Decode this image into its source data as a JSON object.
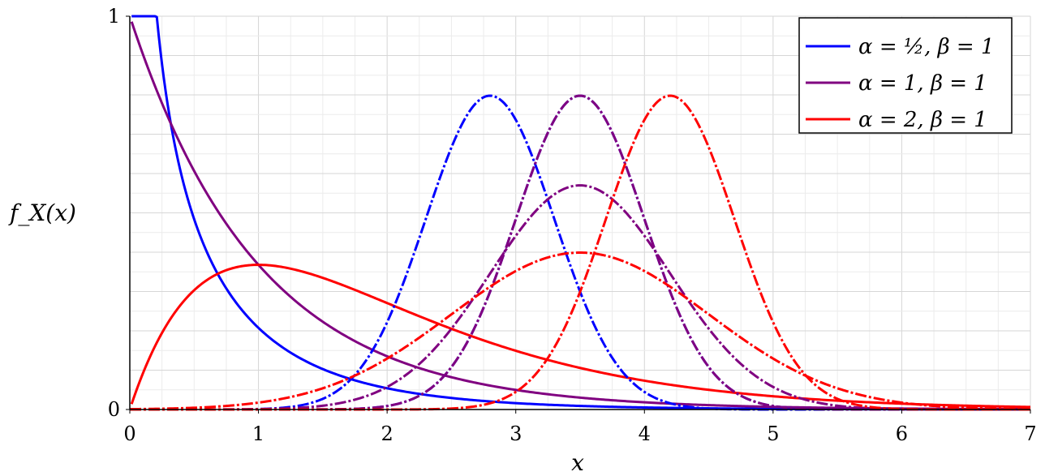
{
  "chart_data": {
    "type": "line",
    "xlabel": "x",
    "ylabel": "f_X(x)",
    "xlim": [
      0,
      7
    ],
    "ylim": [
      0,
      1.0
    ],
    "xticks": [
      0,
      1,
      2,
      3,
      4,
      5,
      6,
      7
    ],
    "yticks": [
      0,
      1
    ],
    "grid": true,
    "legend_position": "top-right",
    "legend": [
      {
        "label": "α = ½, β = 1",
        "color": "#0000ff"
      },
      {
        "label": "α = 1, β = 1",
        "color": "#800080"
      },
      {
        "label": "α = 2, β = 1",
        "color": "#ff0000"
      }
    ],
    "series": [
      {
        "family": "gamma",
        "color": "#0000ff",
        "alpha": 0.5,
        "beta": 1,
        "style": "solid"
      },
      {
        "family": "gamma",
        "color": "#800080",
        "alpha": 1,
        "beta": 1,
        "style": "solid"
      },
      {
        "family": "gamma",
        "color": "#ff0000",
        "alpha": 2,
        "beta": 1,
        "style": "solid"
      },
      {
        "family": "normal",
        "color": "#0000ff",
        "mu": 2.8,
        "sigma": 0.5,
        "style": "dashed"
      },
      {
        "family": "normal",
        "color": "#0000ff",
        "mu": 3.5,
        "sigma": 0.5,
        "style": "dashed"
      },
      {
        "family": "normal",
        "color": "#800080",
        "mu": 3.5,
        "sigma": 0.5,
        "style": "dashed"
      },
      {
        "family": "normal",
        "color": "#800080",
        "mu": 3.5,
        "sigma": 0.7,
        "style": "dashed"
      },
      {
        "family": "normal",
        "color": "#ff0000",
        "mu": 4.2,
        "sigma": 0.5,
        "style": "dashed"
      },
      {
        "family": "normal",
        "color": "#ff0000",
        "mu": 3.5,
        "sigma": 1.0,
        "style": "dashed"
      }
    ]
  }
}
